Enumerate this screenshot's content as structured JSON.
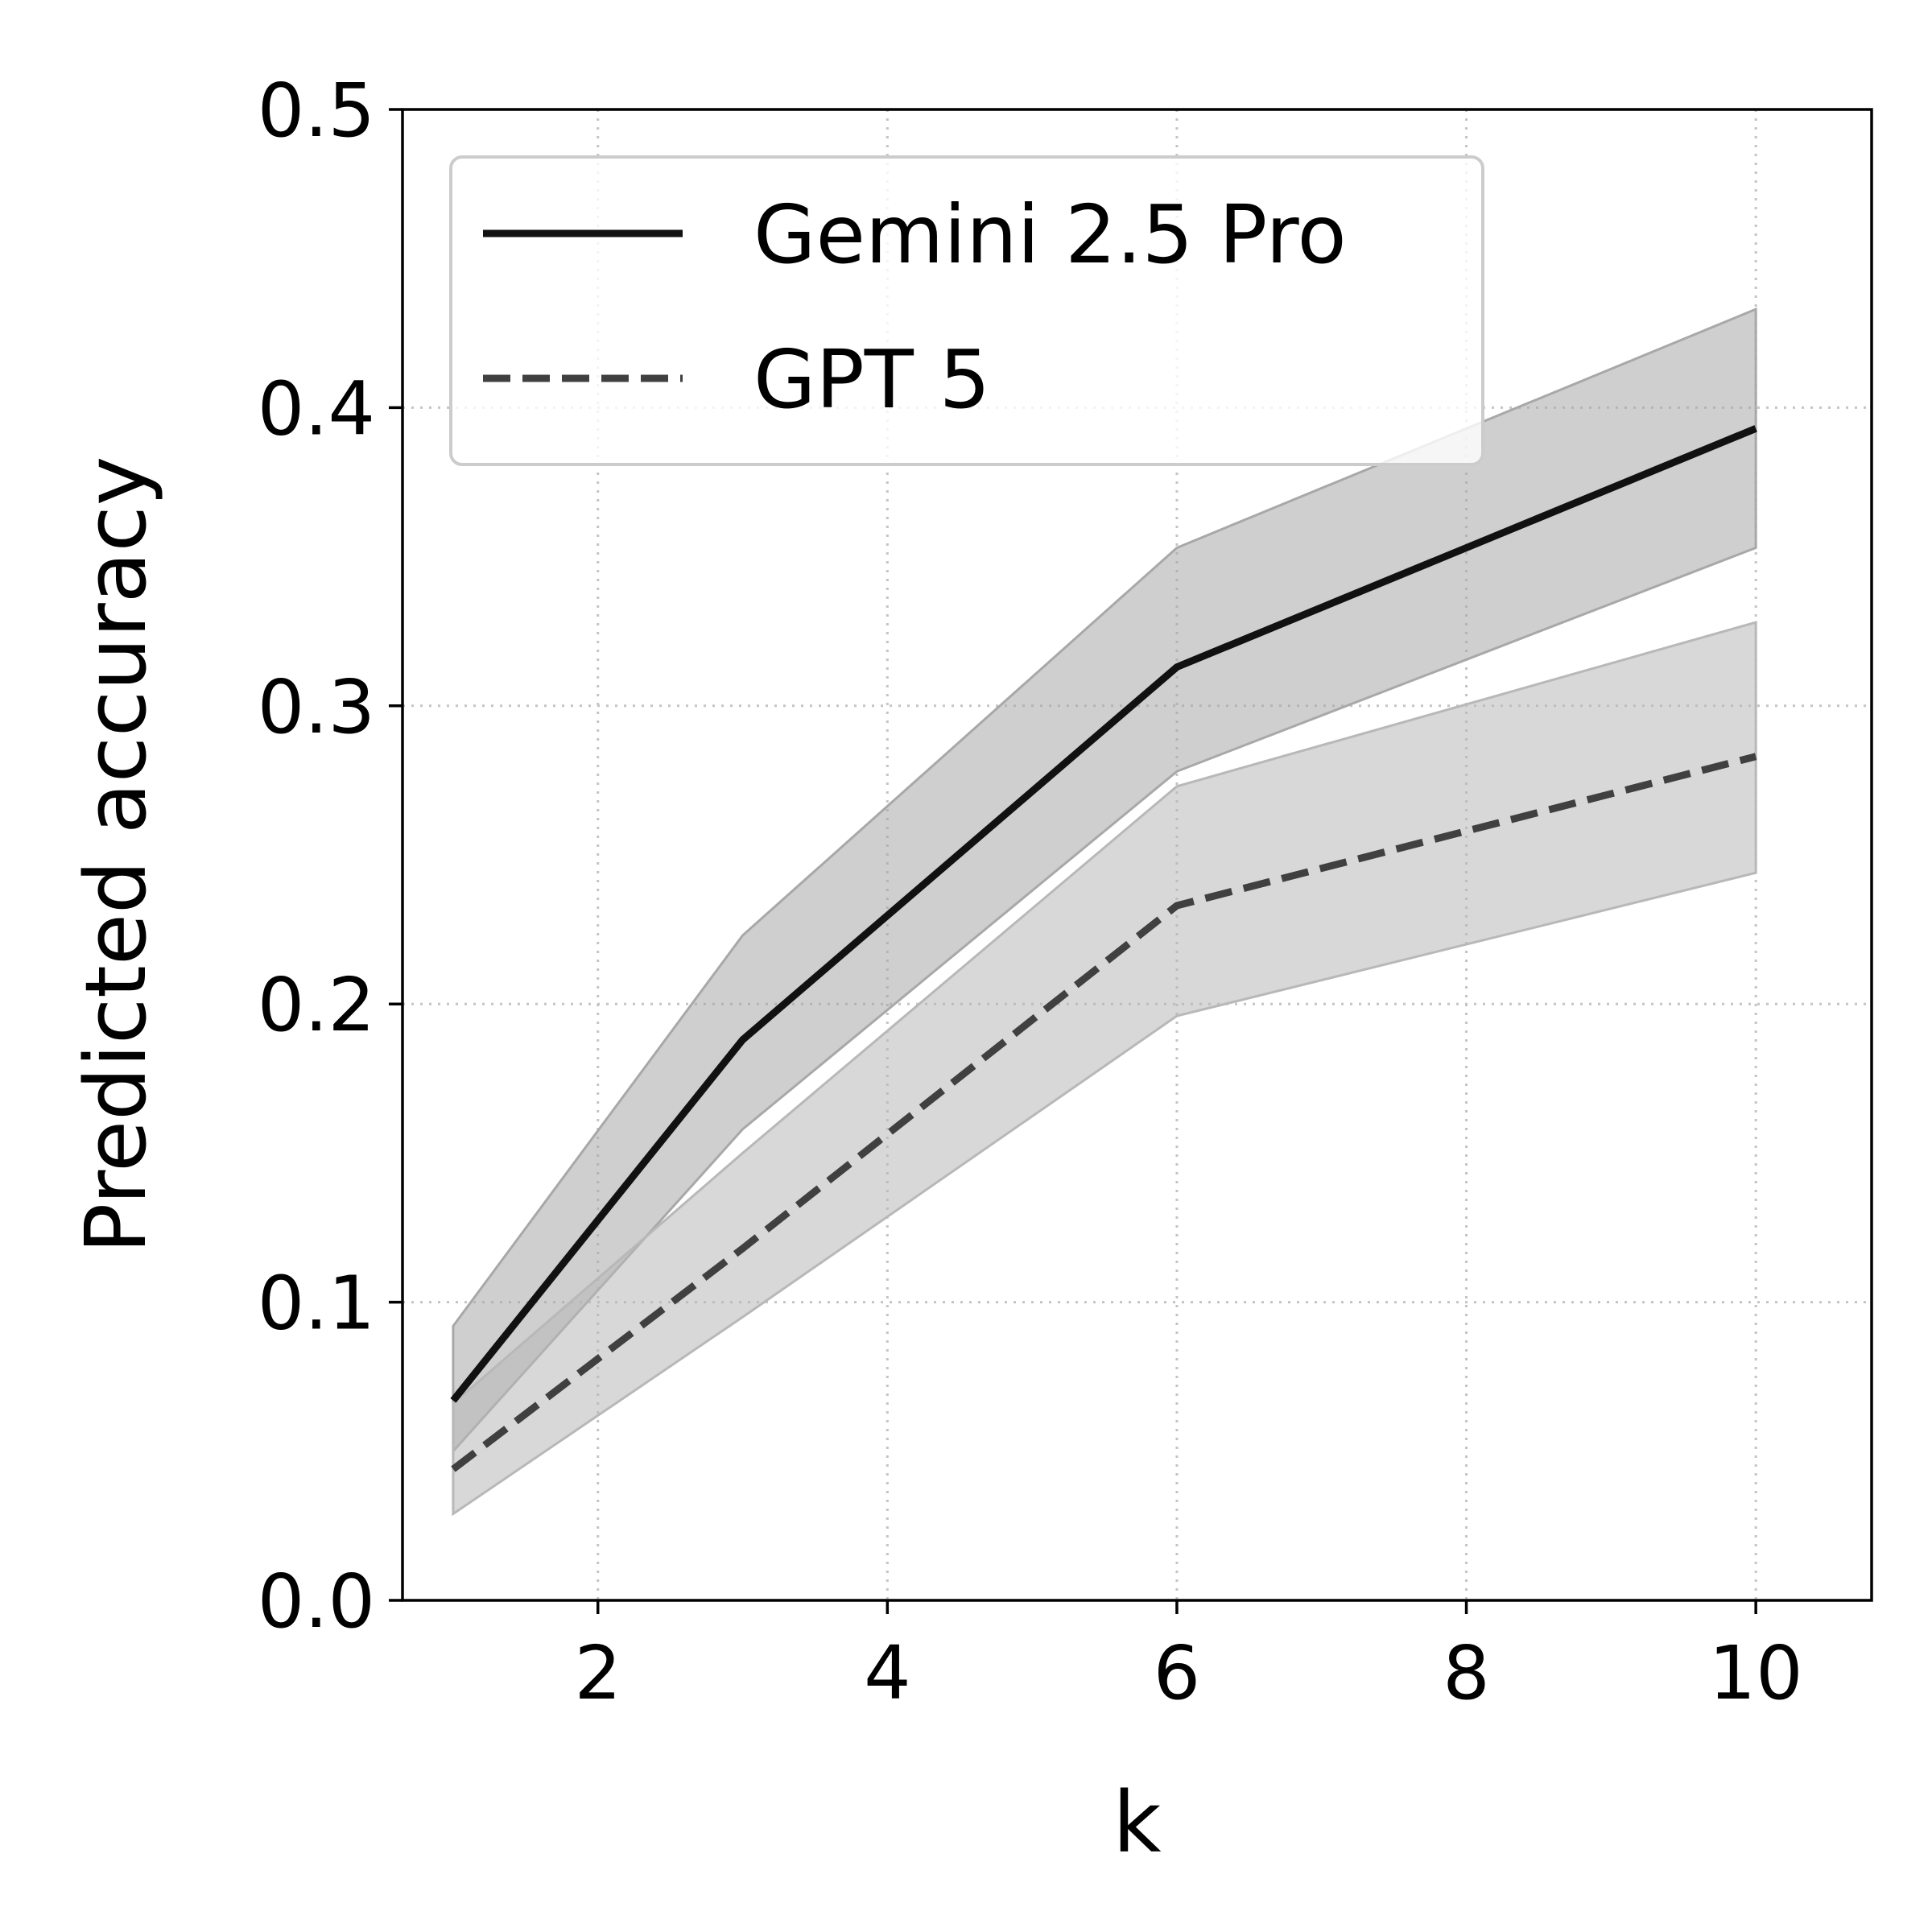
{
  "chart_data": {
    "type": "line",
    "title": "",
    "xlabel": "k",
    "ylabel": "Predicted accuracy",
    "xlim": [
      0.65,
      10.8
    ],
    "ylim": [
      0.0,
      0.5
    ],
    "x_ticks": [
      2,
      4,
      6,
      8,
      10
    ],
    "x_tick_labels": [
      "2",
      "4",
      "6",
      "8",
      "10"
    ],
    "y_ticks": [
      0.0,
      0.1,
      0.2,
      0.3,
      0.4,
      0.5
    ],
    "y_tick_labels": [
      "0.0",
      "0.1",
      "0.2",
      "0.3",
      "0.4",
      "0.5"
    ],
    "grid": true,
    "grid_style": "dotted",
    "legend_position": "top-left",
    "series": [
      {
        "name": "Gemini 2.5 Pro",
        "line_style": "solid",
        "color": "#111111",
        "band_color": "#a8a8a8",
        "x": [
          1,
          3,
          6,
          10
        ],
        "y": [
          0.067,
          0.188,
          0.313,
          0.393
        ],
        "lower": [
          0.05,
          0.158,
          0.278,
          0.353
        ],
        "upper": [
          0.092,
          0.223,
          0.353,
          0.433
        ]
      },
      {
        "name": "GPT 5",
        "line_style": "dashed",
        "color": "#404040",
        "band_color": "#b8b8b8",
        "x": [
          1,
          3,
          6,
          10
        ],
        "y": [
          0.044,
          0.118,
          0.233,
          0.283
        ],
        "lower": [
          0.029,
          0.095,
          0.196,
          0.244
        ],
        "upper": [
          0.066,
          0.15,
          0.273,
          0.328
        ]
      }
    ]
  }
}
